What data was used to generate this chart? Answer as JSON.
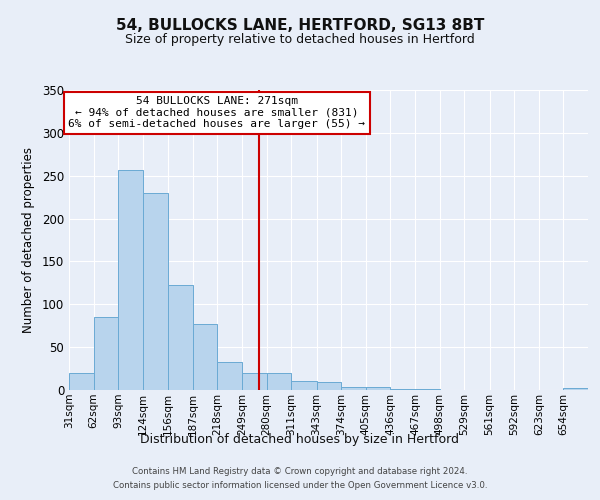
{
  "title": "54, BULLOCKS LANE, HERTFORD, SG13 8BT",
  "subtitle": "Size of property relative to detached houses in Hertford",
  "xlabel": "Distribution of detached houses by size in Hertford",
  "ylabel": "Number of detached properties",
  "bar_color": "#b8d4ed",
  "bar_edge_color": "#6aaad4",
  "background_color": "#e8eef8",
  "grid_color": "#ffffff",
  "vline_x": 271,
  "vline_color": "#cc0000",
  "bin_edges": [
    31,
    62,
    93,
    124,
    156,
    187,
    218,
    249,
    280,
    311,
    343,
    374,
    405,
    436,
    467,
    498,
    529,
    561,
    592,
    623,
    654,
    685
  ],
  "bin_labels": [
    "31sqm",
    "62sqm",
    "93sqm",
    "124sqm",
    "156sqm",
    "187sqm",
    "218sqm",
    "249sqm",
    "280sqm",
    "311sqm",
    "343sqm",
    "374sqm",
    "405sqm",
    "436sqm",
    "467sqm",
    "498sqm",
    "529sqm",
    "561sqm",
    "592sqm",
    "623sqm",
    "654sqm"
  ],
  "bar_heights": [
    20,
    85,
    257,
    230,
    122,
    77,
    33,
    20,
    20,
    10,
    9,
    4,
    3,
    1,
    1,
    0,
    0,
    0,
    0,
    0,
    2
  ],
  "ylim": [
    0,
    350
  ],
  "yticks": [
    0,
    50,
    100,
    150,
    200,
    250,
    300,
    350
  ],
  "annotation_title": "54 BULLOCKS LANE: 271sqm",
  "annotation_line1": "← 94% of detached houses are smaller (831)",
  "annotation_line2": "6% of semi-detached houses are larger (55) →",
  "annotation_box_color": "#ffffff",
  "annotation_box_edge": "#cc0000",
  "footer1": "Contains HM Land Registry data © Crown copyright and database right 2024.",
  "footer2": "Contains public sector information licensed under the Open Government Licence v3.0."
}
